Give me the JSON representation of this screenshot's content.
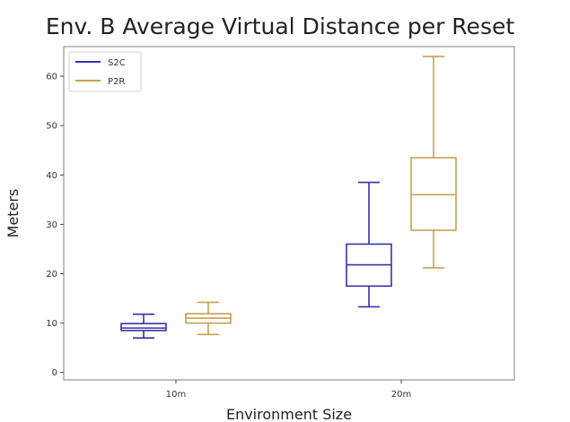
{
  "chart_data": {
    "type": "box",
    "title": "Env. B Average Virtual Distance per Reset",
    "xlabel": "Environment Size",
    "ylabel": "Meters",
    "categories": [
      "10m",
      "20m"
    ],
    "ylim": [
      -1.5,
      66
    ],
    "yticks": [
      0,
      10,
      20,
      30,
      40,
      50,
      60
    ],
    "grid": false,
    "legend_position": "top-left",
    "series": [
      {
        "name": "S2C",
        "color": "#3333aa",
        "boxes": [
          {
            "whisker_low": 7.0,
            "q1": 8.5,
            "median": 9.0,
            "q3": 9.9,
            "whisker_high": 11.8
          },
          {
            "whisker_low": 13.3,
            "q1": 17.5,
            "median": 21.8,
            "q3": 26.0,
            "whisker_high": 38.5
          }
        ]
      },
      {
        "name": "P2R",
        "color": "#c8a050",
        "boxes": [
          {
            "whisker_low": 7.7,
            "q1": 10.0,
            "median": 11.0,
            "q3": 11.9,
            "whisker_high": 14.2
          },
          {
            "whisker_low": 21.2,
            "q1": 28.8,
            "median": 36.0,
            "q3": 43.5,
            "whisker_high": 64.0
          }
        ]
      }
    ]
  }
}
